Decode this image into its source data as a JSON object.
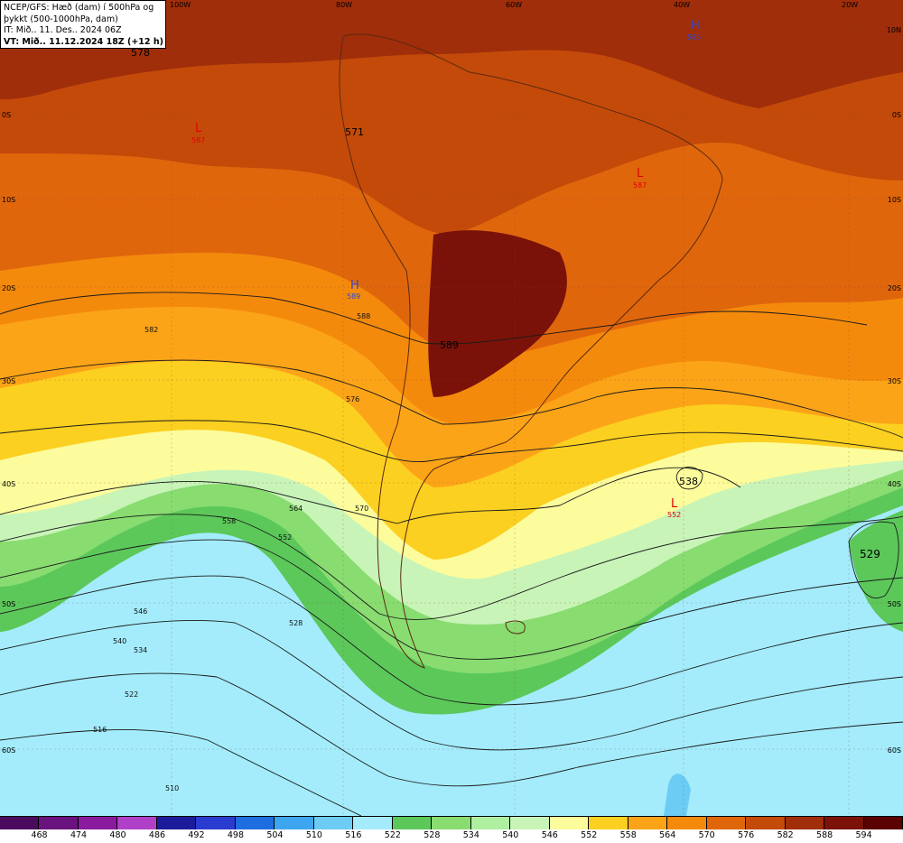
{
  "info": {
    "line1": "NCEP/GFS: Hæð (dam) í 500hPa og",
    "line2": "þykkt (500-1000hPa, dam)",
    "line3": "IT: Mið.. 11. Des.. 2024 06Z",
    "line4": "VT: Mið.. 11.12.2024 18Z (+12 h)"
  },
  "lon_labels": [
    "100W",
    "80W",
    "60W",
    "40W",
    "20W"
  ],
  "lat_labels": [
    "10N",
    "0S",
    "10S",
    "20S",
    "30S",
    "40S",
    "50S",
    "60S"
  ],
  "pressure_centers": [
    {
      "type": "H",
      "value": "585",
      "color": "#2a4bd8"
    },
    {
      "type": "L",
      "value": "587",
      "color": "#e00000"
    },
    {
      "type": "L",
      "value": "587",
      "color": "#e00000"
    },
    {
      "type": "H",
      "value": "589",
      "color": "#2a4bd8"
    },
    {
      "type": "L",
      "value": "552",
      "color": "#e00000"
    }
  ],
  "height_labels": [
    "571",
    "589",
    "538",
    "529",
    "578"
  ],
  "contour_labels": [
    "588",
    "582",
    "576",
    "570",
    "564",
    "558",
    "552",
    "546",
    "540",
    "534",
    "528",
    "522",
    "516",
    "510"
  ],
  "colorbar": {
    "labels": [
      "468",
      "474",
      "480",
      "486",
      "492",
      "498",
      "504",
      "510",
      "516",
      "522",
      "528",
      "534",
      "540",
      "546",
      "552",
      "558",
      "564",
      "570",
      "576",
      "582",
      "588",
      "594"
    ],
    "colors": [
      "#4a0a5e",
      "#6a127e",
      "#8a1a9e",
      "#b040c8",
      "#1c1c9a",
      "#2a3cd0",
      "#1f6ee0",
      "#3ea6ee",
      "#6cccf4",
      "#a4ecfc",
      "#5cc85a",
      "#88dc70",
      "#aef0a0",
      "#c8f4b8",
      "#fcfc9c",
      "#fcd020",
      "#fca418",
      "#f48a0c",
      "#e0660c",
      "#c44a0a",
      "#a02e0a",
      "#7a120a",
      "#5a0000"
    ]
  }
}
